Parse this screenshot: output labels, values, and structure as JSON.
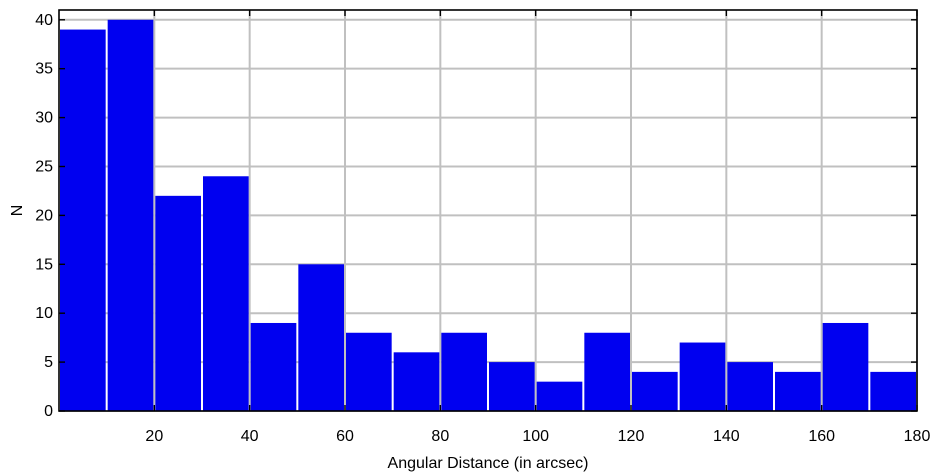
{
  "chart_data": {
    "type": "bar",
    "title": "",
    "xlabel": "Angular Distance (in arcsec)",
    "ylabel": "N",
    "xlim": [
      0,
      180
    ],
    "ylim": [
      0,
      41
    ],
    "xticks": [
      20,
      40,
      60,
      80,
      100,
      120,
      140,
      160,
      180
    ],
    "yticks": [
      0,
      5,
      10,
      15,
      20,
      25,
      30,
      35,
      40
    ],
    "grid": true,
    "bin_edges": [
      0,
      10,
      20,
      30,
      40,
      50,
      60,
      70,
      80,
      90,
      100,
      110,
      120,
      130,
      140,
      150,
      160,
      170,
      180
    ],
    "values": [
      39,
      40,
      22,
      24,
      9,
      15,
      8,
      6,
      8,
      5,
      3,
      8,
      4,
      7,
      5,
      4,
      9,
      4
    ],
    "colors": {
      "bar": "#0000f0",
      "grid": "#c0c0c0",
      "frame": "#000000"
    }
  }
}
